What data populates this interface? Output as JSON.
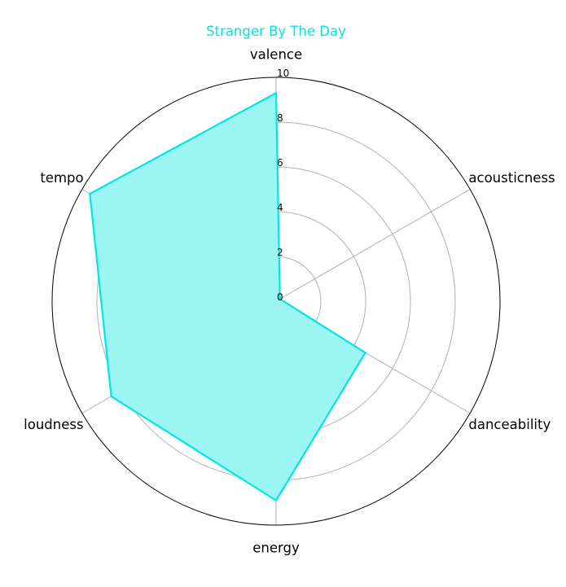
{
  "colors": {
    "series": "#00e5e5",
    "fill": "#9bf5f0",
    "grid": "#b0b0b0",
    "frame": "#000000",
    "title": "#00e5e5"
  },
  "chart_data": {
    "type": "radar",
    "title": "Stranger By The Day",
    "axes": [
      "valence",
      "acousticness",
      "danceability",
      "energy",
      "loudness",
      "tempo"
    ],
    "rlim": [
      0,
      10
    ],
    "rticks": [
      0,
      2,
      4,
      6,
      8,
      10
    ],
    "rtick_labels": [
      "0",
      "2",
      "4",
      "6",
      "8",
      "10"
    ],
    "grid": true,
    "series": [
      {
        "values": [
          9.3,
          0.2,
          4.6,
          8.9,
          8.5,
          9.6
        ]
      }
    ]
  }
}
